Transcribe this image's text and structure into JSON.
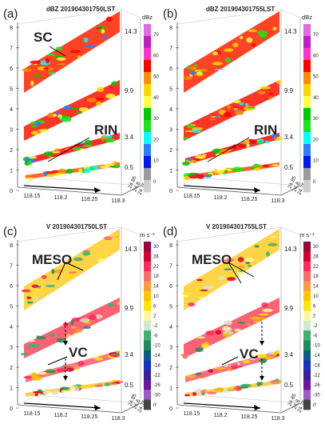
{
  "chart_data": [
    {
      "type": "heatmap",
      "panel_label": "(a)",
      "title": "dBZ 201904301750LST",
      "variable": "reflectivity",
      "colorbar": {
        "unit": "dBz",
        "ticks": [
          "70",
          "60",
          "50",
          "40",
          "30",
          "20",
          "10",
          "0"
        ],
        "colors": [
          "#e16be1",
          "#c21fc2",
          "#ff33cc",
          "#ff0000",
          "#ff8c00",
          "#ffd400",
          "#ffff3c",
          "#00c800",
          "#19e619",
          "#00ffff",
          "#2a7fff",
          "#0018ff",
          "#9a9a9a",
          "#cfcfcf"
        ]
      },
      "elevation_labels": [
        "14.3",
        "9.9",
        "3.4",
        "0.5"
      ],
      "z_ticks": [
        "8",
        "7",
        "6",
        "5",
        "4",
        "3",
        "2",
        "1",
        "0"
      ],
      "x_ticks": [
        "118.15",
        "118.2",
        "118.25",
        "118.3"
      ],
      "y_ticks": [
        "24.75",
        "24.8",
        "24.85"
      ],
      "annotations": [
        "SC",
        "RIN"
      ]
    },
    {
      "type": "heatmap",
      "panel_label": "(b)",
      "title": "dBZ 201904301755LST",
      "variable": "reflectivity",
      "colorbar": {
        "unit": "dBz",
        "ticks": [
          "70",
          "60",
          "50",
          "40",
          "30",
          "20",
          "10",
          "0"
        ],
        "colors": [
          "#e16be1",
          "#c21fc2",
          "#ff33cc",
          "#ff0000",
          "#ff8c00",
          "#ffd400",
          "#ffff3c",
          "#00c800",
          "#19e619",
          "#00ffff",
          "#2a7fff",
          "#0018ff",
          "#9a9a9a",
          "#cfcfcf"
        ]
      },
      "elevation_labels": [
        "14.3",
        "9.9",
        "3.4",
        "0.5"
      ],
      "z_ticks": [
        "8",
        "7",
        "6",
        "5",
        "4",
        "3",
        "2",
        "1",
        "0"
      ],
      "x_ticks": [
        "118.15",
        "118.2",
        "118.25",
        "118.3"
      ],
      "y_ticks": [
        "24.75",
        "24.8",
        "24.85"
      ],
      "annotations": [
        "RIN"
      ]
    },
    {
      "type": "heatmap",
      "panel_label": "(c)",
      "title": "V 201904301750LST",
      "variable": "radial velocity",
      "colorbar": {
        "unit": "m s⁻¹",
        "ticks": [
          "30",
          "26",
          "22",
          "18",
          "14",
          "10",
          "6",
          "2",
          "-2",
          "-6",
          "-10",
          "-14",
          "-18",
          "-22",
          "-26",
          "-30",
          "rf"
        ],
        "colors": [
          "#a0003c",
          "#d6002f",
          "#ff2a55",
          "#ff6a6a",
          "#ff9a3c",
          "#ffc400",
          "#ffe600",
          "#fff7a0",
          "#cfe8cf",
          "#3cb371",
          "#1e8c5a",
          "#0a5c8c",
          "#1432c8",
          "#3c1ea0",
          "#6e14a0",
          "#9a5ac8",
          "#444444"
        ]
      },
      "elevation_labels": [
        "14.3",
        "9.9",
        "3.4",
        "0.5"
      ],
      "z_ticks": [
        "8",
        "7",
        "6",
        "5",
        "4",
        "3",
        "2",
        "1",
        "0"
      ],
      "x_ticks": [
        "118.15",
        "118.2",
        "118.25",
        "118.3"
      ],
      "y_ticks": [
        "24.75",
        "24.8",
        "24.85"
      ],
      "annotations": [
        "MESO",
        "VC"
      ]
    },
    {
      "type": "heatmap",
      "panel_label": "(d)",
      "title": "V 201904301755LST",
      "variable": "radial velocity",
      "colorbar": {
        "unit": "m s⁻¹",
        "ticks": [
          "30",
          "26",
          "22",
          "18",
          "14",
          "10",
          "6",
          "2",
          "-2",
          "-6",
          "-10",
          "-14",
          "-18",
          "-22",
          "-26",
          "-30",
          "rf"
        ],
        "colors": [
          "#a0003c",
          "#d6002f",
          "#ff2a55",
          "#ff6a6a",
          "#ff9a3c",
          "#ffc400",
          "#ffe600",
          "#fff7a0",
          "#cfe8cf",
          "#3cb371",
          "#1e8c5a",
          "#0a5c8c",
          "#1432c8",
          "#3c1ea0",
          "#6e14a0",
          "#9a5ac8",
          "#444444"
        ]
      },
      "elevation_labels": [
        "14.3",
        "9.9",
        "3.4",
        "0.5"
      ],
      "z_ticks": [
        "8",
        "7",
        "6",
        "5",
        "4",
        "3",
        "2",
        "1",
        "0"
      ],
      "x_ticks": [
        "118.15",
        "118.2",
        "118.25",
        "118.3"
      ],
      "y_ticks": [
        "24.75",
        "24.8",
        "24.85"
      ],
      "annotations": [
        "MESO",
        "VC"
      ]
    }
  ]
}
